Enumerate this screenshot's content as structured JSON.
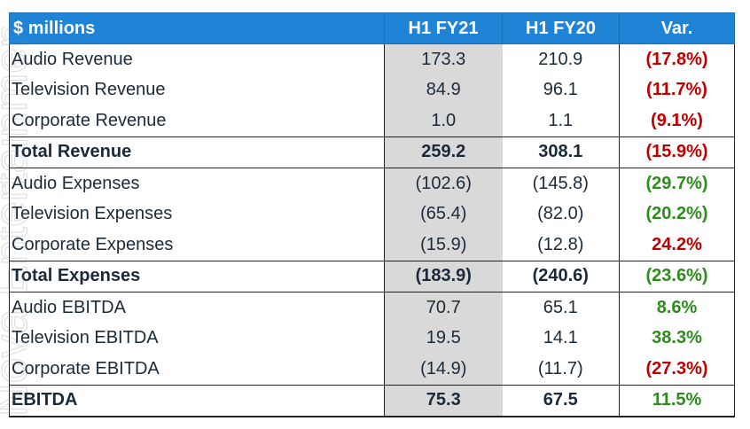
{
  "header": {
    "label": "$ millions",
    "col1": "H1 FY21",
    "col2": "H1 FY20",
    "col3": "Var."
  },
  "rows": [
    {
      "label": "Audio Revenue",
      "h1fy21": "173.3",
      "h1fy20": "210.9",
      "var": "(17.8%)",
      "var_color": "#c00000",
      "total": false
    },
    {
      "label": "Television Revenue",
      "h1fy21": "84.9",
      "h1fy20": "96.1",
      "var": "(11.7%)",
      "var_color": "#c00000",
      "total": false
    },
    {
      "label": "Corporate Revenue",
      "h1fy21": "1.0",
      "h1fy20": "1.1",
      "var": "(9.1%)",
      "var_color": "#c00000",
      "total": false
    },
    {
      "label": "Total Revenue",
      "h1fy21": "259.2",
      "h1fy20": "308.1",
      "var": "(15.9%)",
      "var_color": "#c00000",
      "total": true
    },
    {
      "label": "Audio Expenses",
      "h1fy21": "(102.6)",
      "h1fy20": "(145.8)",
      "var": "(29.7%)",
      "var_color": "#2e8b1e",
      "total": false
    },
    {
      "label": "Television Expenses",
      "h1fy21": "(65.4)",
      "h1fy20": "(82.0)",
      "var": "(20.2%)",
      "var_color": "#2e8b1e",
      "total": false
    },
    {
      "label": "Corporate Expenses",
      "h1fy21": "(15.9)",
      "h1fy20": "(12.8)",
      "var": "24.2%",
      "var_color": "#c00000",
      "total": false
    },
    {
      "label": "Total Expenses",
      "h1fy21": "(183.9)",
      "h1fy20": "(240.6)",
      "var": "(23.6%)",
      "var_color": "#2e8b1e",
      "total": true
    },
    {
      "label": "Audio EBITDA",
      "h1fy21": "70.7",
      "h1fy20": "65.1",
      "var": "8.6%",
      "var_color": "#2e8b1e",
      "total": false
    },
    {
      "label": "Television EBITDA",
      "h1fy21": "19.5",
      "h1fy20": "14.1",
      "var": "38.3%",
      "var_color": "#2e8b1e",
      "total": false
    },
    {
      "label": "Corporate EBITDA",
      "h1fy21": "(14.9)",
      "h1fy20": "(11.7)",
      "var": "(27.3%)",
      "var_color": "#c00000",
      "total": false
    },
    {
      "label": "EBITDA",
      "h1fy21": "75.3",
      "h1fy20": "67.5",
      "var": "11.5%",
      "var_color": "#2e8b1e",
      "total": true
    }
  ],
  "watermark": {
    "text": "Nova Entertainment"
  }
}
